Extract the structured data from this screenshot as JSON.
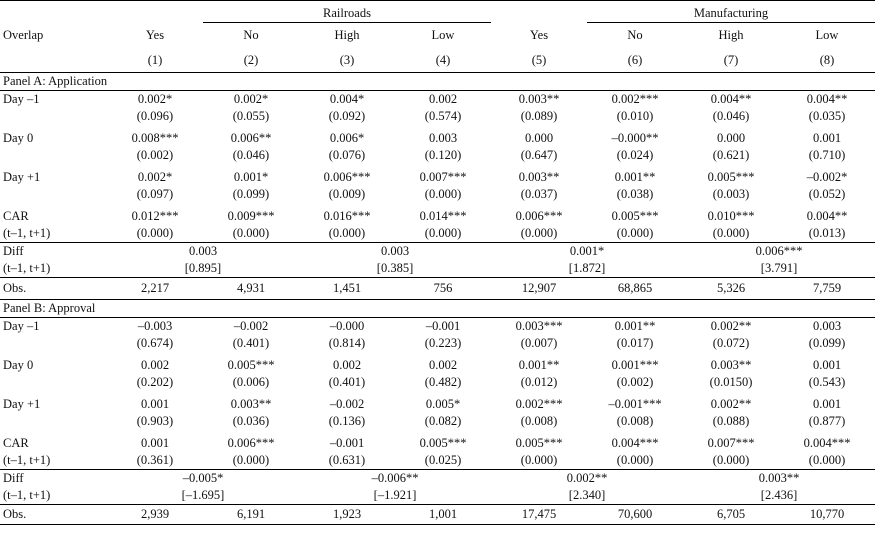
{
  "groups": [
    "Railroads",
    "Manufacturing"
  ],
  "header": {
    "row_label": "Overlap",
    "columns": [
      "Yes",
      "No",
      "High",
      "Low",
      "Yes",
      "No",
      "High",
      "Low"
    ],
    "numbers": [
      "(1)",
      "(2)",
      "(3)",
      "(4)",
      "(5)",
      "(6)",
      "(7)",
      "(8)"
    ]
  },
  "panel_a": {
    "title": "Panel A: Application",
    "rows": [
      {
        "label": "Day –1",
        "label2": "",
        "coef": [
          "0.002*",
          "0.002*",
          "0.004*",
          "0.002",
          "0.003**",
          "0.002***",
          "0.004**",
          "0.004**"
        ],
        "se": [
          "(0.096)",
          "(0.055)",
          "(0.092)",
          "(0.574)",
          "(0.089)",
          "(0.010)",
          "(0.046)",
          "(0.035)"
        ]
      },
      {
        "label": "Day 0",
        "label2": "",
        "coef": [
          "0.008***",
          "0.006**",
          "0.006*",
          "0.003",
          "0.000",
          "–0.000**",
          "0.000",
          "0.001"
        ],
        "se": [
          "(0.002)",
          "(0.046)",
          "(0.076)",
          "(0.120)",
          "(0.647)",
          "(0.024)",
          "(0.621)",
          "(0.710)"
        ]
      },
      {
        "label": "Day +1",
        "label2": "",
        "coef": [
          "0.002*",
          "0.001*",
          "0.006***",
          "0.007***",
          "0.003**",
          "0.001**",
          "0.005***",
          "–0.002*"
        ],
        "se": [
          "(0.097)",
          "(0.099)",
          "(0.009)",
          "(0.000)",
          "(0.037)",
          "(0.038)",
          "(0.003)",
          "(0.052)"
        ]
      },
      {
        "label": "CAR",
        "label2": "(t–1, t+1)",
        "coef": [
          "0.012***",
          "0.009***",
          "0.016***",
          "0.014***",
          "0.006***",
          "0.005***",
          "0.010***",
          "0.004**"
        ],
        "se": [
          "(0.000)",
          "(0.000)",
          "(0.000)",
          "(0.000)",
          "(0.000)",
          "(0.000)",
          "(0.000)",
          "(0.013)"
        ]
      }
    ],
    "diff": {
      "label": "Diff",
      "label2": "(t–1, t+1)",
      "values": [
        "0.003",
        "0.003",
        "0.001*",
        "0.006***"
      ],
      "stats": [
        "[0.895]",
        "[0.385]",
        "[1.872]",
        "[3.791]"
      ]
    },
    "obs": {
      "label": "Obs.",
      "values": [
        "2,217",
        "4,931",
        "1,451",
        "756",
        "12,907",
        "68,865",
        "5,326",
        "7,759"
      ]
    }
  },
  "panel_b": {
    "title": "Panel B: Approval",
    "rows": [
      {
        "label": "Day –1",
        "label2": "",
        "coef": [
          "–0.003",
          "–0.002",
          "–0.000",
          "–0.001",
          "0.003***",
          "0.001**",
          "0.002**",
          "0.003"
        ],
        "se": [
          "(0.674)",
          "(0.401)",
          "(0.814)",
          "(0.223)",
          "(0.007)",
          "(0.017)",
          "(0.072)",
          "(0.099)"
        ]
      },
      {
        "label": "Day 0",
        "label2": "",
        "coef": [
          "0.002",
          "0.005***",
          "0.002",
          "0.002",
          "0.001**",
          "0.001***",
          "0.003**",
          "0.001"
        ],
        "se": [
          "(0.202)",
          "(0.006)",
          "(0.401)",
          "(0.482)",
          "(0.012)",
          "(0.002)",
          "(0.0150)",
          "(0.543)"
        ]
      },
      {
        "label": "Day +1",
        "label2": "",
        "coef": [
          "0.001",
          "0.003**",
          "–0.002",
          "0.005*",
          "0.002***",
          "–0.001***",
          "0.002**",
          "0.001"
        ],
        "se": [
          "(0.903)",
          "(0.036)",
          "(0.136)",
          "(0.082)",
          "(0.008)",
          "(0.008)",
          "(0.088)",
          "(0.877)"
        ]
      },
      {
        "label": "CAR",
        "label2": "(t–1, t+1)",
        "coef": [
          "0.001",
          "0.006***",
          "–0.001",
          "0.005***",
          "0.005***",
          "0.004***",
          "0.007***",
          "0.004***"
        ],
        "se": [
          "(0.361)",
          "(0.000)",
          "(0.631)",
          "(0.025)",
          "(0.000)",
          "(0.000)",
          "(0.000)",
          "(0.000)"
        ]
      }
    ],
    "diff": {
      "label": "Diff",
      "label2": "(t–1, t+1)",
      "values": [
        "–0.005*",
        "–0.006**",
        "0.002**",
        "0.003**"
      ],
      "stats": [
        "[–1.695]",
        "[–1.921]",
        "[2.340]",
        "[2.436]"
      ]
    },
    "obs": {
      "label": "Obs.",
      "values": [
        "2,939",
        "6,191",
        "1,923",
        "1,001",
        "17,475",
        "70,600",
        "6,705",
        "10,770"
      ]
    }
  }
}
